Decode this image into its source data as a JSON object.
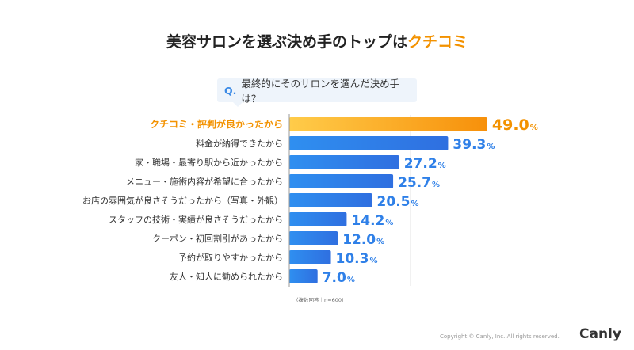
{
  "title": {
    "prefix": "美容サロンを選ぶ決め手のトップは",
    "highlight": "クチコミ"
  },
  "question": {
    "mark": "Q.",
    "text": "最終的にそのサロンを選んだ決め手は？"
  },
  "chart_data": {
    "type": "bar",
    "orientation": "horizontal",
    "categories": [
      "クチコミ・評判が良かったから",
      "料金が納得できたから",
      "家・職場・最寄り駅から近かったから",
      "メニュー・施術内容が希望に合ったから",
      "お店の雰囲気が良さそうだったから（写真・外観）",
      "スタッフの技術・実績が良さそうだったから",
      "クーポン・初回割引があったから",
      "予約が取りやすかったから",
      "友人・知人に勧められたから"
    ],
    "values": [
      49.0,
      39.3,
      27.2,
      25.7,
      20.5,
      14.2,
      12.0,
      10.3,
      7.0
    ],
    "unit": "%",
    "highlight_color": "#f39200",
    "bar_color": "#2f7fe6"
  },
  "note": "（複数回答｜n=600）",
  "copyright": "Copyright © Canly, Inc. All rights reserved.",
  "logo": "Canly"
}
